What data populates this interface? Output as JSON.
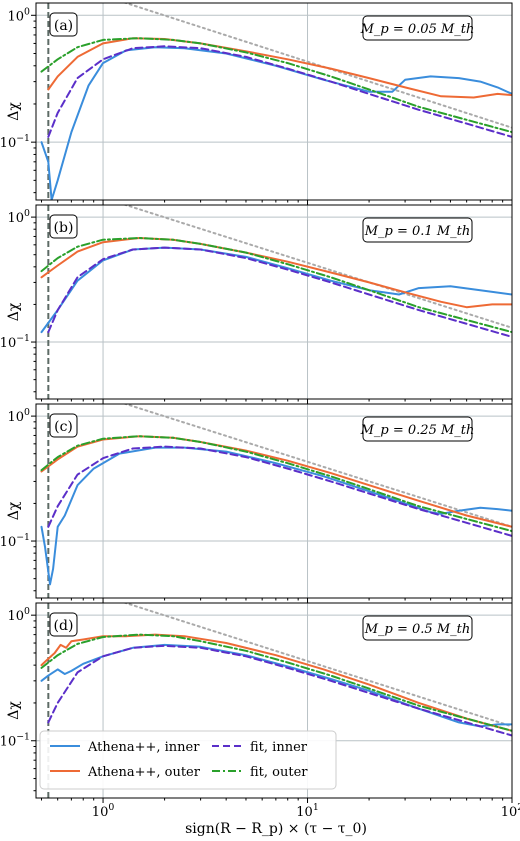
{
  "figure": {
    "xlabel": "sign(R − R_p) × (τ − τ_0)",
    "ylabel": "Δχ",
    "x_ticklabels": [
      "10^0",
      "10^1",
      "10^2"
    ],
    "y_ticklabels": [
      "10^0",
      "10^−1"
    ],
    "legend": [
      {
        "label": "Athena++, inner",
        "color": "#3a8ddc",
        "style": "solid"
      },
      {
        "label": "Athena++, outer",
        "color": "#ee6a35",
        "style": "solid"
      },
      {
        "label": "fit, inner",
        "color": "#5b2fc9",
        "style": "dashed"
      },
      {
        "label": "fit, outer",
        "color": "#2aa02b",
        "style": "dashdot"
      }
    ]
  },
  "chart_data": [
    {
      "type": "line",
      "panel_label": "(a)",
      "mass_label": "M_p = 0.05 M_th",
      "xscale": "log",
      "yscale": "log",
      "xlim": [
        0.47,
        100
      ],
      "ylim": [
        0.035,
        1.25
      ],
      "vline_x": 0.54,
      "grid": true,
      "series": [
        {
          "name": "Athena++, inner",
          "x": [
            0.5,
            0.54,
            0.56,
            0.6,
            0.7,
            0.85,
            1.0,
            1.3,
            1.8,
            2.5,
            4,
            7,
            12,
            20,
            26,
            30,
            40,
            55,
            70,
            85,
            100
          ],
          "y": [
            0.1,
            0.07,
            0.035,
            0.05,
            0.12,
            0.28,
            0.42,
            0.53,
            0.56,
            0.55,
            0.5,
            0.4,
            0.31,
            0.25,
            0.25,
            0.31,
            0.33,
            0.32,
            0.3,
            0.27,
            0.24
          ]
        },
        {
          "name": "Athena++, outer",
          "x": [
            0.54,
            0.6,
            0.75,
            1.0,
            1.4,
            2.0,
            3.0,
            5,
            8,
            13,
            20,
            30,
            45,
            65,
            85,
            100
          ],
          "y": [
            0.26,
            0.33,
            0.47,
            0.6,
            0.66,
            0.65,
            0.6,
            0.52,
            0.45,
            0.38,
            0.32,
            0.27,
            0.23,
            0.225,
            0.24,
            0.235
          ]
        },
        {
          "name": "fit, inner",
          "x": [
            0.54,
            0.6,
            0.75,
            1.0,
            1.4,
            2.0,
            3.0,
            5,
            8,
            13,
            20,
            35,
            60,
            100
          ],
          "y": [
            0.11,
            0.17,
            0.32,
            0.45,
            0.55,
            0.57,
            0.55,
            0.47,
            0.38,
            0.3,
            0.24,
            0.18,
            0.14,
            0.11
          ]
        },
        {
          "name": "fit, outer",
          "x": [
            0.5,
            0.6,
            0.75,
            1.0,
            1.5,
            2.2,
            3.0,
            5,
            8,
            13,
            20,
            35,
            60,
            100
          ],
          "y": [
            0.36,
            0.45,
            0.56,
            0.64,
            0.66,
            0.64,
            0.6,
            0.51,
            0.42,
            0.33,
            0.26,
            0.19,
            0.15,
            0.12
          ]
        },
        {
          "name": "asymptote",
          "x": [
            1.2,
            100
          ],
          "y": [
            1.3,
            0.13
          ]
        }
      ]
    },
    {
      "type": "line",
      "panel_label": "(b)",
      "mass_label": "M_p = 0.1 M_th",
      "xscale": "log",
      "yscale": "log",
      "xlim": [
        0.47,
        100
      ],
      "ylim": [
        0.035,
        1.25
      ],
      "vline_x": 0.54,
      "grid": true,
      "series": [
        {
          "name": "Athena++, inner",
          "x": [
            0.5,
            0.6,
            0.75,
            1.0,
            1.4,
            2.0,
            3.0,
            5,
            8,
            13,
            20,
            28,
            35,
            50,
            70,
            100
          ],
          "y": [
            0.12,
            0.18,
            0.31,
            0.45,
            0.55,
            0.57,
            0.55,
            0.48,
            0.39,
            0.31,
            0.26,
            0.24,
            0.27,
            0.28,
            0.26,
            0.24
          ]
        },
        {
          "name": "Athena++, outer",
          "x": [
            0.5,
            0.6,
            0.75,
            1.0,
            1.5,
            2.2,
            3.0,
            5,
            8,
            13,
            20,
            30,
            45,
            60,
            80,
            100
          ],
          "y": [
            0.33,
            0.41,
            0.53,
            0.63,
            0.68,
            0.66,
            0.61,
            0.52,
            0.44,
            0.36,
            0.3,
            0.25,
            0.21,
            0.19,
            0.2,
            0.2
          ]
        },
        {
          "name": "fit, inner",
          "x": [
            0.54,
            0.6,
            0.75,
            1.0,
            1.4,
            2.0,
            3.0,
            5,
            8,
            13,
            20,
            35,
            60,
            100
          ],
          "y": [
            0.12,
            0.18,
            0.33,
            0.46,
            0.55,
            0.57,
            0.55,
            0.47,
            0.38,
            0.3,
            0.24,
            0.18,
            0.14,
            0.11
          ]
        },
        {
          "name": "fit, outer",
          "x": [
            0.5,
            0.6,
            0.75,
            1.0,
            1.5,
            2.2,
            3.0,
            5,
            8,
            13,
            20,
            35,
            60,
            100
          ],
          "y": [
            0.37,
            0.47,
            0.58,
            0.66,
            0.68,
            0.66,
            0.61,
            0.52,
            0.42,
            0.33,
            0.26,
            0.19,
            0.15,
            0.12
          ]
        },
        {
          "name": "asymptote",
          "x": [
            1.2,
            100
          ],
          "y": [
            1.3,
            0.13
          ]
        }
      ]
    },
    {
      "type": "line",
      "panel_label": "(c)",
      "mass_label": "M_p = 0.25 M_th",
      "xscale": "log",
      "yscale": "log",
      "xlim": [
        0.47,
        100
      ],
      "ylim": [
        0.035,
        1.25
      ],
      "vline_x": 0.54,
      "grid": true,
      "series": [
        {
          "name": "Athena++, inner",
          "x": [
            0.5,
            0.52,
            0.55,
            0.57,
            0.6,
            0.65,
            0.75,
            0.9,
            1.2,
            1.8,
            2.5,
            4,
            7,
            12,
            20,
            30,
            40,
            45,
            55,
            70,
            85,
            100
          ],
          "y": [
            0.13,
            0.09,
            0.045,
            0.06,
            0.13,
            0.16,
            0.28,
            0.38,
            0.5,
            0.56,
            0.56,
            0.52,
            0.42,
            0.33,
            0.25,
            0.2,
            0.17,
            0.165,
            0.175,
            0.185,
            0.18,
            0.175
          ]
        },
        {
          "name": "Athena++, outer",
          "x": [
            0.5,
            0.6,
            0.75,
            1.0,
            1.5,
            2.2,
            3.0,
            5,
            8,
            13,
            20,
            35,
            60,
            100
          ],
          "y": [
            0.36,
            0.45,
            0.57,
            0.65,
            0.69,
            0.67,
            0.62,
            0.53,
            0.44,
            0.35,
            0.28,
            0.21,
            0.16,
            0.13
          ]
        },
        {
          "name": "fit, inner",
          "x": [
            0.54,
            0.6,
            0.75,
            1.0,
            1.4,
            2.0,
            3.0,
            5,
            8,
            13,
            20,
            35,
            60,
            100
          ],
          "y": [
            0.13,
            0.19,
            0.34,
            0.46,
            0.55,
            0.57,
            0.55,
            0.47,
            0.38,
            0.3,
            0.24,
            0.18,
            0.14,
            0.11
          ]
        },
        {
          "name": "fit, outer",
          "x": [
            0.5,
            0.6,
            0.75,
            1.0,
            1.5,
            2.2,
            3.0,
            5,
            8,
            13,
            20,
            35,
            60,
            100
          ],
          "y": [
            0.37,
            0.47,
            0.58,
            0.66,
            0.69,
            0.67,
            0.62,
            0.52,
            0.42,
            0.33,
            0.26,
            0.19,
            0.15,
            0.12
          ]
        },
        {
          "name": "asymptote",
          "x": [
            1.2,
            100
          ],
          "y": [
            1.3,
            0.13
          ]
        }
      ]
    },
    {
      "type": "line",
      "panel_label": "(d)",
      "mass_label": "M_p = 0.5 M_th",
      "xscale": "log",
      "yscale": "log",
      "xlim": [
        0.47,
        100
      ],
      "ylim": [
        0.035,
        1.25
      ],
      "vline_x": 0.54,
      "grid": true,
      "series": [
        {
          "name": "Athena++, inner",
          "x": [
            0.5,
            0.54,
            0.6,
            0.65,
            0.7,
            0.8,
            1.0,
            1.4,
            2.0,
            3.0,
            5,
            8,
            13,
            20,
            35,
            55,
            70,
            85,
            100
          ],
          "y": [
            0.3,
            0.33,
            0.37,
            0.34,
            0.36,
            0.41,
            0.47,
            0.55,
            0.58,
            0.56,
            0.48,
            0.39,
            0.31,
            0.25,
            0.18,
            0.14,
            0.13,
            0.135,
            0.135
          ]
        },
        {
          "name": "Athena++, outer",
          "x": [
            0.5,
            0.54,
            0.58,
            0.62,
            0.66,
            0.7,
            0.8,
            1.0,
            1.3,
            1.8,
            2.5,
            4,
            7,
            12,
            20,
            35,
            60,
            100
          ],
          "y": [
            0.4,
            0.45,
            0.5,
            0.58,
            0.55,
            0.62,
            0.64,
            0.68,
            0.68,
            0.7,
            0.68,
            0.6,
            0.48,
            0.37,
            0.28,
            0.2,
            0.15,
            0.12
          ]
        },
        {
          "name": "fit, inner",
          "x": [
            0.54,
            0.6,
            0.75,
            1.0,
            1.4,
            2.0,
            3.0,
            5,
            8,
            13,
            20,
            35,
            60,
            100
          ],
          "y": [
            0.14,
            0.2,
            0.35,
            0.47,
            0.55,
            0.57,
            0.55,
            0.47,
            0.38,
            0.3,
            0.24,
            0.18,
            0.14,
            0.11
          ]
        },
        {
          "name": "fit, outer",
          "x": [
            0.5,
            0.6,
            0.75,
            1.0,
            1.5,
            2.2,
            3.0,
            5,
            8,
            13,
            20,
            35,
            60,
            100
          ],
          "y": [
            0.38,
            0.48,
            0.59,
            0.67,
            0.7,
            0.68,
            0.62,
            0.52,
            0.42,
            0.33,
            0.26,
            0.19,
            0.15,
            0.12
          ]
        },
        {
          "name": "asymptote",
          "x": [
            1.2,
            100
          ],
          "y": [
            1.3,
            0.13
          ]
        }
      ]
    }
  ]
}
